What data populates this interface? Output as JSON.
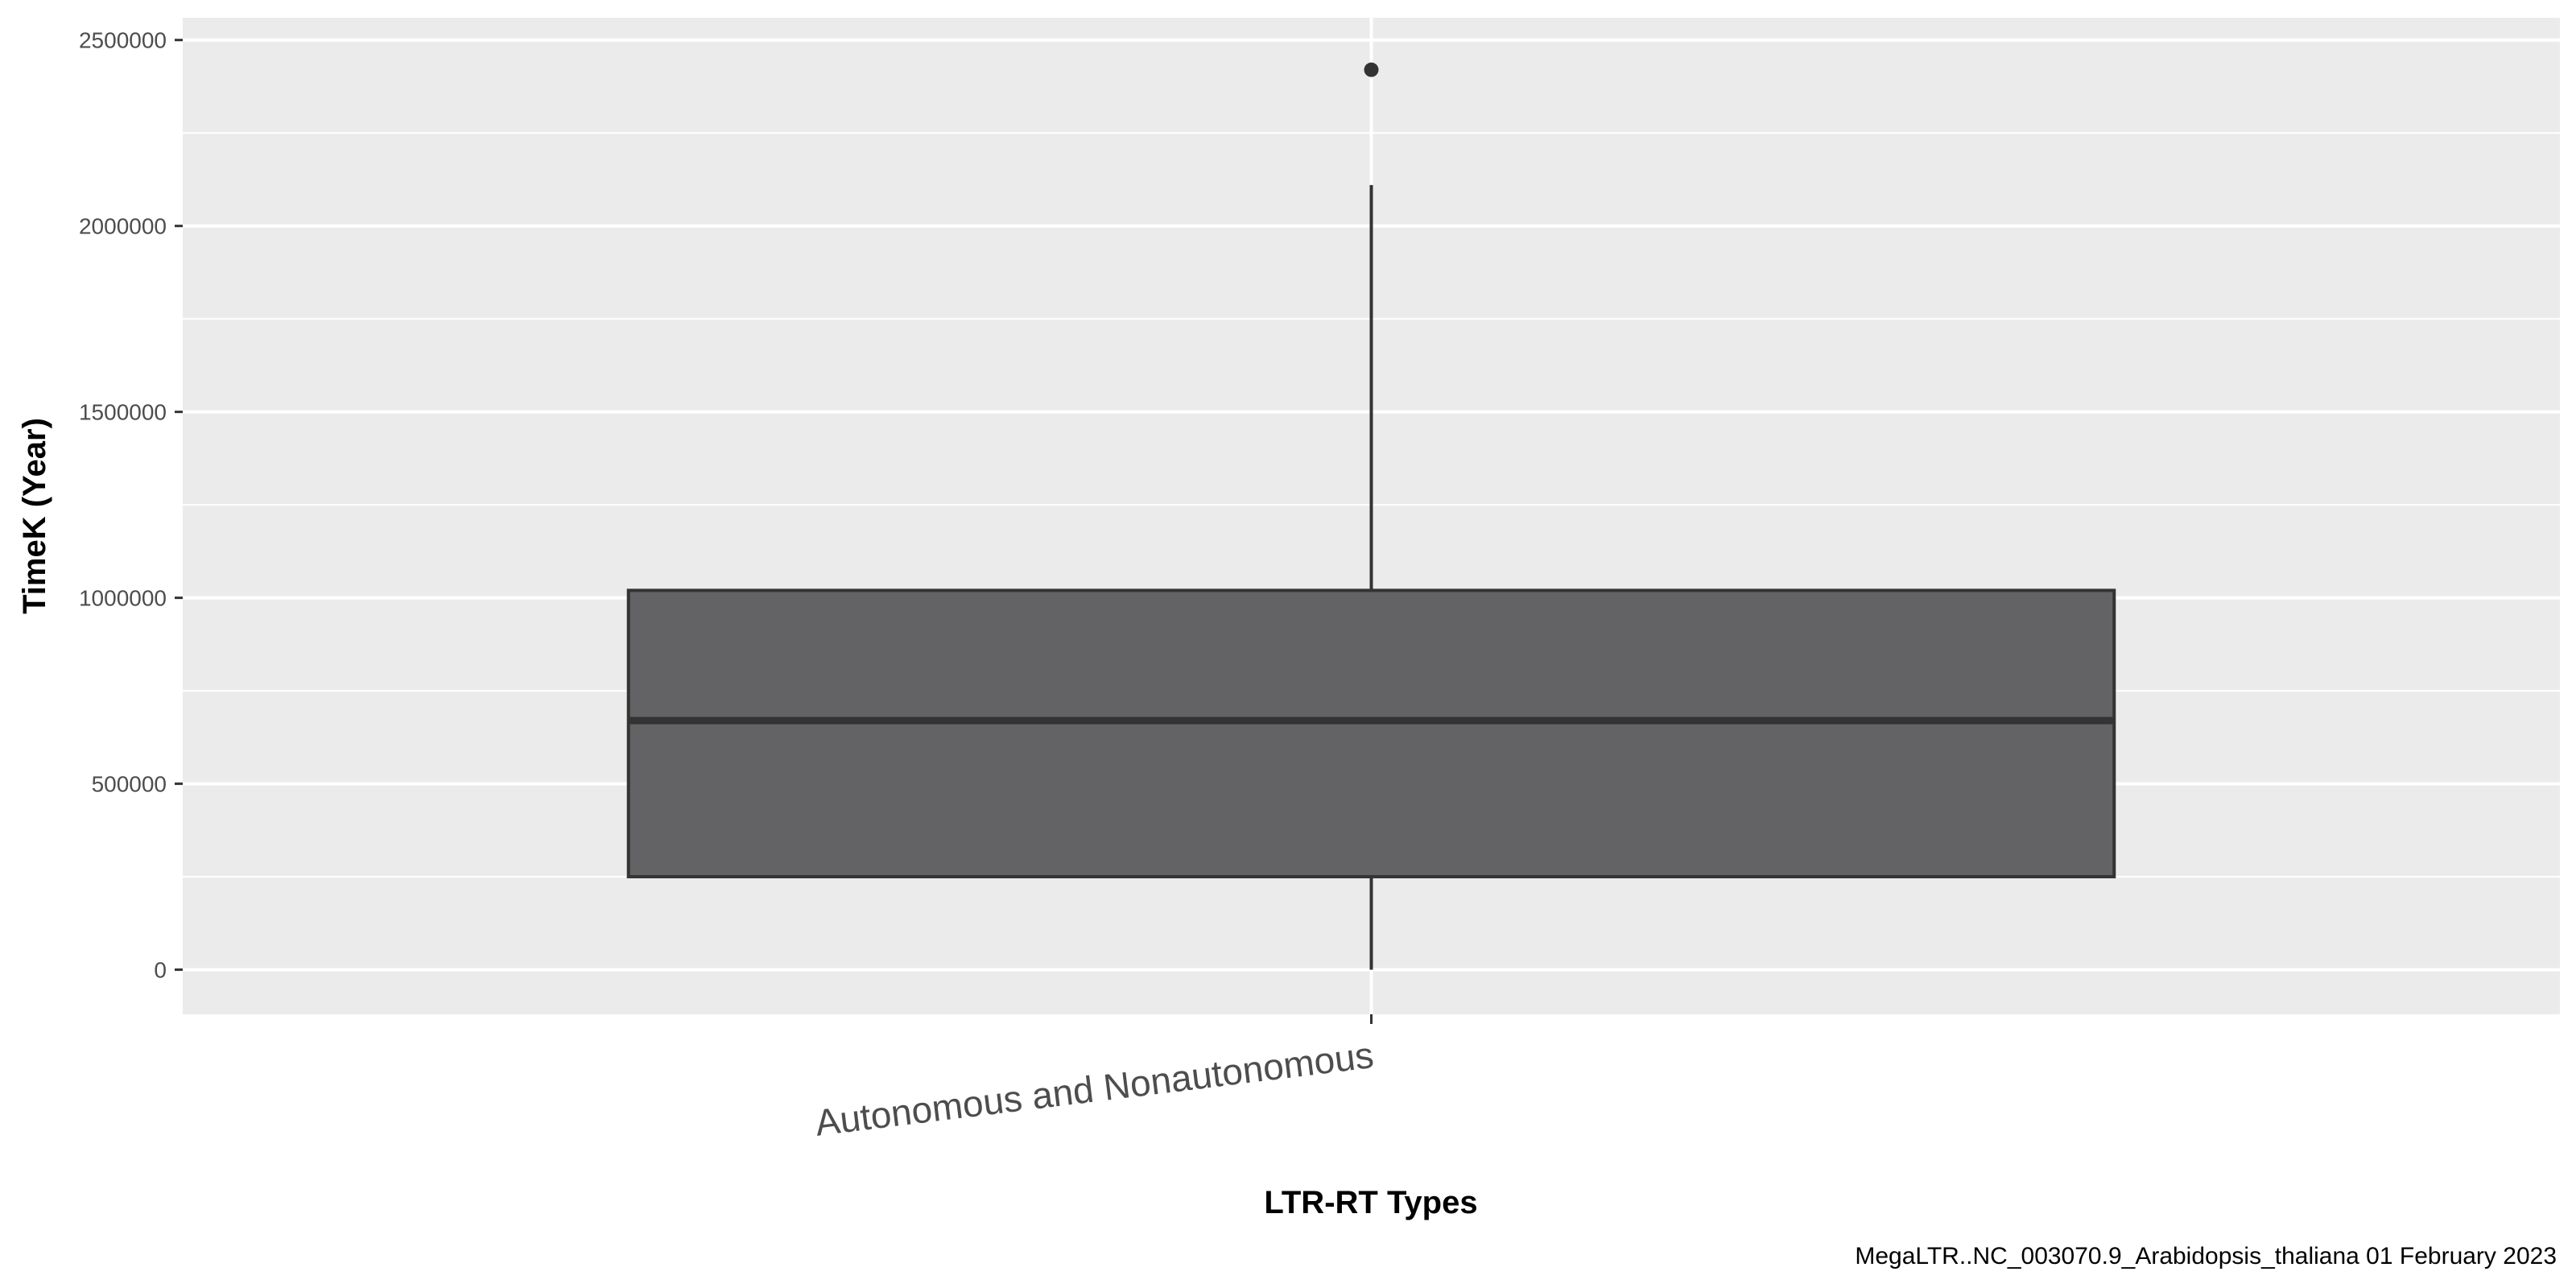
{
  "chart_data": {
    "type": "boxplot",
    "xlabel": "LTR-RT Types",
    "ylabel": "TimeK (Year)",
    "caption": "MegaLTR..NC_003070.9_Arabidopsis_thaliana 01 February 2023",
    "categories": [
      "Autonomous and Nonautonomous"
    ],
    "ylim": [
      -120000,
      2560000
    ],
    "y_ticks": [
      0,
      500000,
      1000000,
      1500000,
      2000000,
      2500000
    ],
    "y_tick_labels": [
      "0",
      "500000",
      "1000000",
      "1500000",
      "2000000",
      "2500000"
    ],
    "boxes": [
      {
        "category": "Autonomous and Nonautonomous",
        "min": 0,
        "q1": 250000,
        "median": 670000,
        "q3": 1020000,
        "max": 2110000,
        "outliers": [
          2420000
        ]
      }
    ],
    "grid": true,
    "legend": "none",
    "colors": {
      "panel_background": "#ebebeb",
      "grid_line": "#ffffff",
      "box_fill": "#5e5e60",
      "box_stroke": "#333333"
    }
  }
}
